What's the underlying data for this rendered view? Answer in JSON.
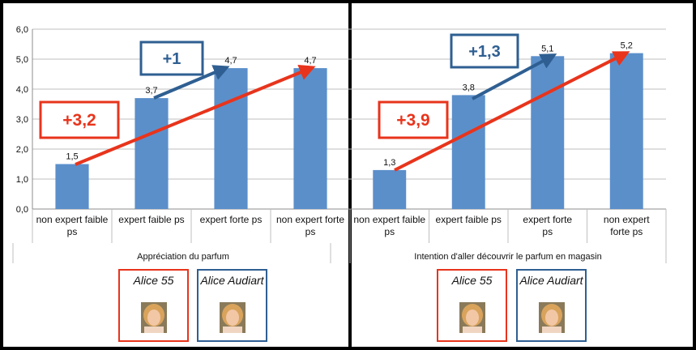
{
  "chart_data": [
    {
      "type": "bar",
      "title": "",
      "xlabel": "Appréciation du parfum",
      "ylabel": "",
      "ylim": [
        0,
        6
      ],
      "yticks": [
        "0,0",
        "1,0",
        "2,0",
        "3,0",
        "4,0",
        "5,0",
        "6,0"
      ],
      "categories": [
        [
          "non expert faible",
          "ps"
        ],
        [
          "expert faible ps"
        ],
        [
          "expert forte ps"
        ],
        [
          "non expert forte",
          "ps"
        ]
      ],
      "values": [
        1.5,
        3.7,
        4.7,
        4.7
      ],
      "value_labels": [
        "1,5",
        "3,7",
        "4,7",
        "4,7"
      ],
      "bar_color": "#5b8fca",
      "grid": true,
      "annotations": [
        {
          "label": "+3,2",
          "color": "#e8341c",
          "from": 0,
          "to": 3
        },
        {
          "label": "+1",
          "color": "#2f5f92",
          "from": 1,
          "to": 2
        }
      ]
    },
    {
      "type": "bar",
      "title": "",
      "xlabel": "Intention d'aller découvrir le parfum en magasin",
      "ylabel": "",
      "ylim": [
        0,
        6
      ],
      "categories": [
        [
          "non expert faible",
          "ps"
        ],
        [
          "expert faible ps"
        ],
        [
          "expert forte",
          "ps"
        ],
        [
          "non expert",
          "forte ps"
        ]
      ],
      "values": [
        1.3,
        3.8,
        5.1,
        5.2
      ],
      "value_labels": [
        "1,3",
        "3,8",
        "5,1",
        "5,2"
      ],
      "bar_color": "#5b8fca",
      "grid": true,
      "annotations": [
        {
          "label": "+3,9",
          "color": "#e8341c",
          "from": 0,
          "to": 3
        },
        {
          "label": "+1,3",
          "color": "#2f5f92",
          "from": 1,
          "to": 2
        }
      ]
    }
  ],
  "cards": [
    {
      "name": "Alice 55",
      "color": "#e8341c"
    },
    {
      "name": "Alice Audiart",
      "color": "#2f5f92"
    },
    {
      "name": "Alice 55",
      "color": "#e8341c"
    },
    {
      "name": "Alice Audiart",
      "color": "#2f5f92"
    }
  ]
}
